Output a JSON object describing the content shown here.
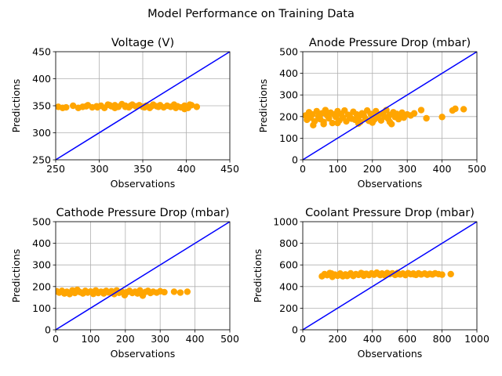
{
  "suptitle": "Model Performance on Training Data",
  "colors": {
    "scatter": "#ffa500",
    "identity_line": "#0000ff",
    "grid": "#b0b0b0"
  },
  "chart_data": [
    {
      "type": "scatter",
      "title": "Voltage (V)",
      "xlabel": "Observations",
      "ylabel": "Predictions",
      "xlim": [
        250,
        450
      ],
      "ylim": [
        250,
        450
      ],
      "xticks": [
        250,
        300,
        350,
        400,
        450
      ],
      "yticks": [
        250,
        300,
        350,
        400,
        450
      ],
      "grid": true,
      "identity_line": true,
      "points": [
        [
          253,
          348
        ],
        [
          258,
          346
        ],
        [
          262,
          347
        ],
        [
          270,
          350
        ],
        [
          276,
          346
        ],
        [
          281,
          348
        ],
        [
          287,
          351
        ],
        [
          292,
          347
        ],
        [
          297,
          349
        ],
        [
          302,
          350
        ],
        [
          306,
          346
        ],
        [
          310,
          352
        ],
        [
          314,
          349
        ],
        [
          318,
          351
        ],
        [
          322,
          348
        ],
        [
          326,
          353
        ],
        [
          330,
          350
        ],
        [
          334,
          347
        ],
        [
          338,
          352
        ],
        [
          342,
          349
        ],
        [
          346,
          351
        ],
        [
          350,
          348
        ],
        [
          354,
          350
        ],
        [
          358,
          346
        ],
        [
          362,
          352
        ],
        [
          366,
          349
        ],
        [
          370,
          351
        ],
        [
          374,
          347
        ],
        [
          378,
          350
        ],
        [
          382,
          348
        ],
        [
          386,
          352
        ],
        [
          390,
          349
        ],
        [
          394,
          347
        ],
        [
          398,
          350
        ],
        [
          402,
          346
        ],
        [
          406,
          351
        ],
        [
          412,
          348
        ],
        [
          298,
          347
        ],
        [
          318,
          346
        ],
        [
          336,
          350
        ],
        [
          352,
          347
        ],
        [
          368,
          348
        ],
        [
          388,
          346
        ],
        [
          398,
          344
        ],
        [
          404,
          352
        ],
        [
          360,
          349
        ],
        [
          330,
          348
        ],
        [
          285,
          349
        ],
        [
          312,
          351
        ]
      ]
    },
    {
      "type": "scatter",
      "title": "Anode Pressure Drop (mbar)",
      "xlabel": "Observations",
      "ylabel": "Predictions",
      "xlim": [
        0,
        500
      ],
      "ylim": [
        0,
        500
      ],
      "xticks": [
        0,
        100,
        200,
        300,
        400,
        500
      ],
      "yticks": [
        0,
        100,
        200,
        300,
        400,
        500
      ],
      "grid": true,
      "identity_line": true,
      "points": [
        [
          8,
          205
        ],
        [
          12,
          185
        ],
        [
          18,
          220
        ],
        [
          22,
          195
        ],
        [
          28,
          210
        ],
        [
          34,
          178
        ],
        [
          40,
          225
        ],
        [
          45,
          200
        ],
        [
          50,
          188
        ],
        [
          55,
          215
        ],
        [
          60,
          175
        ],
        [
          65,
          230
        ],
        [
          70,
          205
        ],
        [
          75,
          192
        ],
        [
          80,
          218
        ],
        [
          85,
          170
        ],
        [
          90,
          210
        ],
        [
          95,
          198
        ],
        [
          100,
          225
        ],
        [
          105,
          182
        ],
        [
          110,
          212
        ],
        [
          115,
          195
        ],
        [
          120,
          228
        ],
        [
          125,
          178
        ],
        [
          130,
          208
        ],
        [
          135,
          200
        ],
        [
          140,
          190
        ],
        [
          145,
          222
        ],
        [
          150,
          185
        ],
        [
          155,
          210
        ],
        [
          160,
          198
        ],
        [
          165,
          175
        ],
        [
          170,
          215
        ],
        [
          175,
          205
        ],
        [
          180,
          190
        ],
        [
          185,
          228
        ],
        [
          190,
          180
        ],
        [
          195,
          212
        ],
        [
          200,
          200
        ],
        [
          205,
          185
        ],
        [
          210,
          225
        ],
        [
          215,
          195
        ],
        [
          220,
          210
        ],
        [
          225,
          182
        ],
        [
          230,
          215
        ],
        [
          235,
          200
        ],
        [
          240,
          230
        ],
        [
          245,
          190
        ],
        [
          250,
          208
        ],
        [
          255,
          165
        ],
        [
          260,
          220
        ],
        [
          265,
          198
        ],
        [
          270,
          212
        ],
        [
          275,
          188
        ],
        [
          280,
          205
        ],
        [
          285,
          218
        ],
        [
          290,
          195
        ],
        [
          300,
          210
        ],
        [
          310,
          205
        ],
        [
          320,
          215
        ],
        [
          340,
          230
        ],
        [
          355,
          192
        ],
        [
          400,
          198
        ],
        [
          430,
          228
        ],
        [
          438,
          236
        ],
        [
          462,
          234
        ],
        [
          30,
          160
        ],
        [
          60,
          165
        ],
        [
          100,
          170
        ],
        [
          160,
          168
        ],
        [
          200,
          172
        ],
        [
          250,
          175
        ]
      ]
    },
    {
      "type": "scatter",
      "title": "Cathode Pressure Drop (mbar)",
      "xlabel": "Observations",
      "ylabel": "Predictions",
      "xlim": [
        0,
        500
      ],
      "ylim": [
        0,
        500
      ],
      "xticks": [
        0,
        100,
        200,
        300,
        400,
        500
      ],
      "yticks": [
        0,
        100,
        200,
        300,
        400,
        500
      ],
      "grid": true,
      "identity_line": true,
      "points": [
        [
          3,
          178
        ],
        [
          10,
          172
        ],
        [
          18,
          180
        ],
        [
          25,
          168
        ],
        [
          32,
          176
        ],
        [
          40,
          165
        ],
        [
          48,
          182
        ],
        [
          55,
          170
        ],
        [
          62,
          185
        ],
        [
          70,
          174
        ],
        [
          78,
          168
        ],
        [
          85,
          180
        ],
        [
          92,
          172
        ],
        [
          100,
          177
        ],
        [
          108,
          166
        ],
        [
          115,
          182
        ],
        [
          122,
          170
        ],
        [
          130,
          176
        ],
        [
          138,
          168
        ],
        [
          145,
          180
        ],
        [
          152,
          173
        ],
        [
          160,
          178
        ],
        [
          168,
          165
        ],
        [
          175,
          182
        ],
        [
          182,
          171
        ],
        [
          190,
          176
        ],
        [
          198,
          160
        ],
        [
          205,
          174
        ],
        [
          212,
          180
        ],
        [
          220,
          170
        ],
        [
          228,
          176
        ],
        [
          235,
          168
        ],
        [
          242,
          182
        ],
        [
          250,
          158
        ],
        [
          258,
          175
        ],
        [
          265,
          180
        ],
        [
          272,
          170
        ],
        [
          280,
          176
        ],
        [
          290,
          172
        ],
        [
          300,
          178
        ],
        [
          312,
          174
        ],
        [
          340,
          176
        ],
        [
          358,
          172
        ],
        [
          378,
          176
        ],
        [
          20,
          175
        ],
        [
          50,
          174
        ],
        [
          88,
          176
        ],
        [
          140,
          175
        ],
        [
          195,
          172
        ],
        [
          240,
          176
        ]
      ]
    },
    {
      "type": "scatter",
      "title": "Coolant Pressure Drop (mbar)",
      "xlabel": "Observations",
      "ylabel": "Predictions",
      "xlim": [
        0,
        1000
      ],
      "ylim": [
        0,
        1000
      ],
      "xticks": [
        0,
        200,
        400,
        600,
        800,
        1000
      ],
      "yticks": [
        0,
        200,
        400,
        600,
        800,
        1000
      ],
      "grid": true,
      "identity_line": true,
      "points": [
        [
          110,
          495
        ],
        [
          125,
          515
        ],
        [
          140,
          505
        ],
        [
          155,
          525
        ],
        [
          170,
          490
        ],
        [
          185,
          510
        ],
        [
          200,
          500
        ],
        [
          215,
          520
        ],
        [
          230,
          495
        ],
        [
          245,
          512
        ],
        [
          260,
          505
        ],
        [
          275,
          522
        ],
        [
          290,
          498
        ],
        [
          305,
          515
        ],
        [
          320,
          508
        ],
        [
          335,
          525
        ],
        [
          350,
          500
        ],
        [
          365,
          518
        ],
        [
          380,
          506
        ],
        [
          395,
          522
        ],
        [
          410,
          510
        ],
        [
          425,
          528
        ],
        [
          440,
          512
        ],
        [
          455,
          520
        ],
        [
          470,
          505
        ],
        [
          485,
          525
        ],
        [
          500,
          515
        ],
        [
          515,
          522
        ],
        [
          530,
          508
        ],
        [
          545,
          526
        ],
        [
          560,
          512
        ],
        [
          575,
          520
        ],
        [
          590,
          506
        ],
        [
          605,
          524
        ],
        [
          620,
          514
        ],
        [
          635,
          520
        ],
        [
          650,
          508
        ],
        [
          665,
          522
        ],
        [
          680,
          512
        ],
        [
          700,
          520
        ],
        [
          715,
          510
        ],
        [
          730,
          518
        ],
        [
          745,
          512
        ],
        [
          760,
          522
        ],
        [
          780,
          515
        ],
        [
          800,
          510
        ],
        [
          850,
          515
        ],
        [
          165,
          520
        ],
        [
          255,
          498
        ],
        [
          345,
          518
        ],
        [
          445,
          506
        ],
        [
          540,
          514
        ],
        [
          640,
          512
        ]
      ]
    }
  ]
}
